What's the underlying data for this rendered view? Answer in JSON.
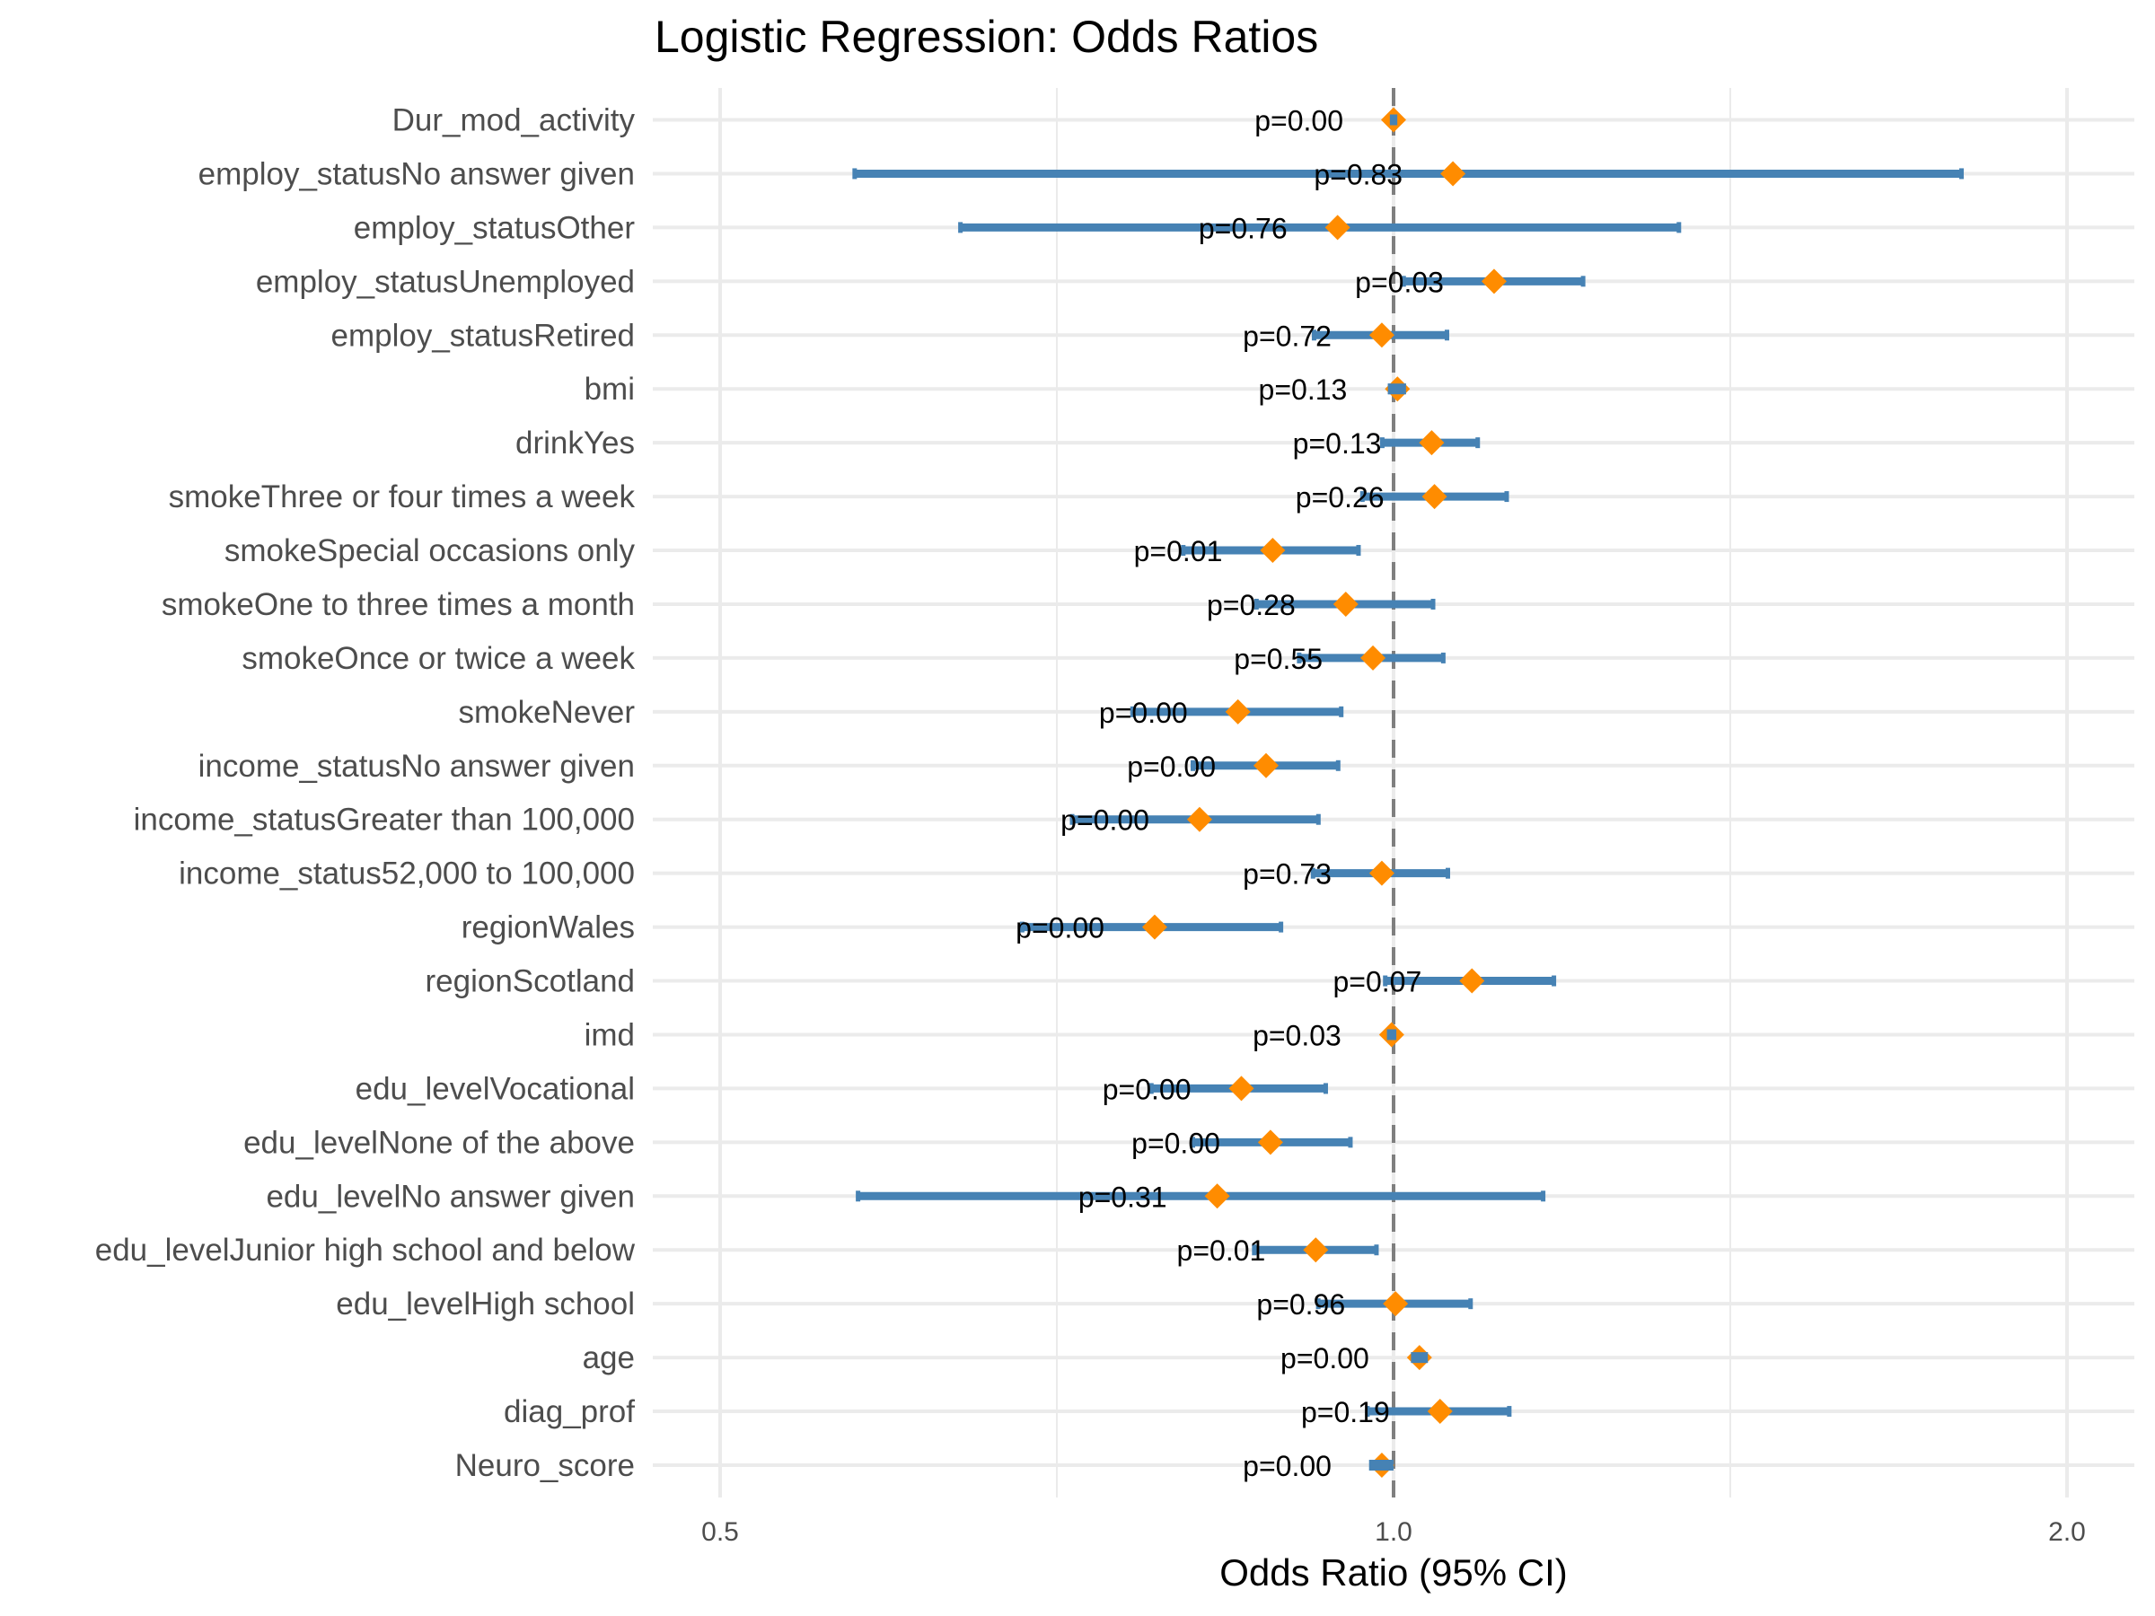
{
  "chart_data": {
    "type": "forest",
    "title": "Logistic Regression: Odds Ratios",
    "xlabel": "Odds Ratio (95% CI)",
    "ylabel": "",
    "x_scale": "log2",
    "xlim": [
      0.47,
      2.15
    ],
    "x_ticks": [
      0.5,
      1.0,
      2.0
    ],
    "x_tick_labels": [
      "0.5",
      "1.0",
      "2.0"
    ],
    "x_minor_ticks": [
      0.7071,
      1.4142
    ],
    "reference_line": 1.0,
    "grid": true,
    "colors": {
      "ci": "#4682B4",
      "point": "#FF8C00",
      "reference": "#7F7F7F",
      "grid": "#EBEBEB"
    },
    "terms": [
      {
        "label": "Dur_mod_activity",
        "or": 1.0,
        "lo": 0.998,
        "hi": 1.002,
        "p_label": "p=0.00"
      },
      {
        "label": "employ_statusNo answer given",
        "or": 1.063,
        "lo": 0.574,
        "hi": 1.795,
        "p_label": "p=0.83"
      },
      {
        "label": "employ_statusOther",
        "or": 0.944,
        "lo": 0.64,
        "hi": 1.342,
        "p_label": "p=0.76"
      },
      {
        "label": "employ_statusUnemployed",
        "or": 1.109,
        "lo": 1.01,
        "hi": 1.216,
        "p_label": "p=0.03"
      },
      {
        "label": "employ_statusRetired",
        "or": 0.988,
        "lo": 0.921,
        "hi": 1.057,
        "p_label": "p=0.72"
      },
      {
        "label": "bmi",
        "or": 1.004,
        "lo": 0.996,
        "hi": 1.011,
        "p_label": "p=0.13"
      },
      {
        "label": "drinkYes",
        "or": 1.04,
        "lo": 0.988,
        "hi": 1.091,
        "p_label": "p=0.13"
      },
      {
        "label": "smokeThree or four times a week",
        "or": 1.043,
        "lo": 0.968,
        "hi": 1.124,
        "p_label": "p=0.26"
      },
      {
        "label": "smokeSpecial occasions only",
        "or": 0.883,
        "lo": 0.805,
        "hi": 0.965,
        "p_label": "p=0.01"
      },
      {
        "label": "smokeOne to three times a month",
        "or": 0.952,
        "lo": 0.868,
        "hi": 1.042,
        "p_label": "p=0.28"
      },
      {
        "label": "smokeOnce or twice a week",
        "or": 0.979,
        "lo": 0.907,
        "hi": 1.053,
        "p_label": "p=0.55"
      },
      {
        "label": "smokeNever",
        "or": 0.852,
        "lo": 0.764,
        "hi": 0.948,
        "p_label": "p=0.00"
      },
      {
        "label": "income_statusNo answer given",
        "or": 0.877,
        "lo": 0.813,
        "hi": 0.945,
        "p_label": "p=0.00"
      },
      {
        "label": "income_statusGreater than 100,000",
        "or": 0.819,
        "lo": 0.718,
        "hi": 0.926,
        "p_label": "p=0.00"
      },
      {
        "label": "income_status52,000 to 100,000",
        "or": 0.988,
        "lo": 0.92,
        "hi": 1.058,
        "p_label": "p=0.73"
      },
      {
        "label": "regionWales",
        "or": 0.782,
        "lo": 0.682,
        "hi": 0.891,
        "p_label": "p=0.00"
      },
      {
        "label": "regionScotland",
        "or": 1.084,
        "lo": 0.991,
        "hi": 1.18,
        "p_label": "p=0.07"
      },
      {
        "label": "imd",
        "or": 0.998,
        "lo": 0.995,
        "hi": 1.001,
        "p_label": "p=0.03"
      },
      {
        "label": "edu_levelVocational",
        "or": 0.855,
        "lo": 0.779,
        "hi": 0.933,
        "p_label": "p=0.00"
      },
      {
        "label": "edu_levelNone of the above",
        "or": 0.881,
        "lo": 0.813,
        "hi": 0.957,
        "p_label": "p=0.00"
      },
      {
        "label": "edu_levelNo answer given",
        "or": 0.834,
        "lo": 0.576,
        "hi": 1.167,
        "p_label": "p=0.31"
      },
      {
        "label": "edu_levelJunior high school and below",
        "or": 0.923,
        "lo": 0.866,
        "hi": 0.983,
        "p_label": "p=0.01"
      },
      {
        "label": "edu_levelHigh school",
        "or": 1.002,
        "lo": 0.925,
        "hi": 1.083,
        "p_label": "p=0.96"
      },
      {
        "label": "age",
        "or": 1.027,
        "lo": 1.02,
        "hi": 1.034,
        "p_label": "p=0.00"
      },
      {
        "label": "diag_prof",
        "or": 1.049,
        "lo": 0.973,
        "hi": 1.127,
        "p_label": "p=0.19"
      },
      {
        "label": "Neuro_score",
        "or": 0.988,
        "lo": 0.977,
        "hi": 0.998,
        "p_label": "p=0.00"
      }
    ]
  }
}
